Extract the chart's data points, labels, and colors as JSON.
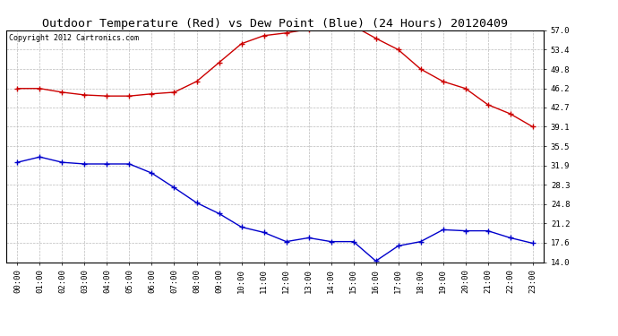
{
  "title": "Outdoor Temperature (Red) vs Dew Point (Blue) (24 Hours) 20120409",
  "copyright_text": "Copyright 2012 Cartronics.com",
  "x_labels": [
    "00:00",
    "01:00",
    "02:00",
    "03:00",
    "04:00",
    "05:00",
    "06:00",
    "07:00",
    "08:00",
    "09:00",
    "10:00",
    "11:00",
    "12:00",
    "13:00",
    "14:00",
    "15:00",
    "16:00",
    "17:00",
    "18:00",
    "19:00",
    "20:00",
    "21:00",
    "22:00",
    "23:00"
  ],
  "temp_red": [
    46.2,
    46.2,
    45.5,
    45.0,
    44.8,
    44.8,
    45.2,
    45.5,
    47.5,
    51.0,
    54.5,
    56.0,
    56.5,
    57.2,
    57.8,
    57.8,
    55.5,
    53.4,
    49.8,
    47.5,
    46.2,
    43.2,
    41.5,
    39.1
  ],
  "dew_blue": [
    32.5,
    33.5,
    32.5,
    32.2,
    32.2,
    32.2,
    30.5,
    27.8,
    25.0,
    23.0,
    20.5,
    19.5,
    17.8,
    18.5,
    17.8,
    17.8,
    14.2,
    17.0,
    17.8,
    20.0,
    19.8,
    19.8,
    18.5,
    17.5
  ],
  "y_ticks": [
    14.0,
    17.6,
    21.2,
    24.8,
    28.3,
    31.9,
    35.5,
    39.1,
    42.7,
    46.2,
    49.8,
    53.4,
    57.0
  ],
  "ylim": [
    14.0,
    57.0
  ],
  "bg_color": "#ffffff",
  "plot_bg_color": "#ffffff",
  "grid_color": "#bbbbbb",
  "red_color": "#cc0000",
  "blue_color": "#0000cc",
  "title_fontsize": 9.5,
  "label_fontsize": 6.5,
  "copyright_fontsize": 6.0
}
